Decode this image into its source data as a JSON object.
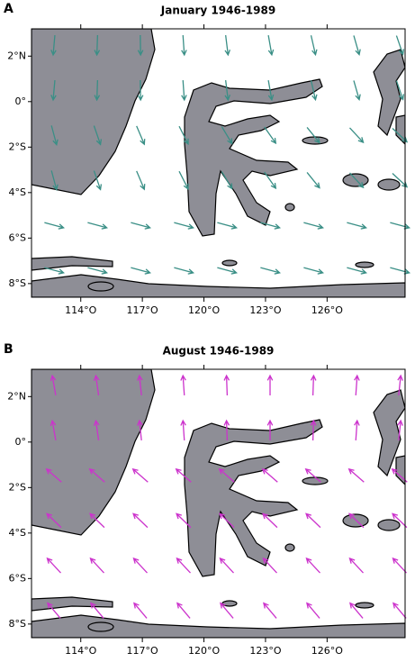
{
  "panels": [
    {
      "label": "A",
      "title": "January 1946-1989",
      "arrow_color": "#3a8f86",
      "xlim": [
        111.6,
        129.8
      ],
      "ylim": [
        -8.6,
        3.2
      ],
      "xticks": [
        {
          "value": 114,
          "label": "114°O"
        },
        {
          "value": 117,
          "label": "117°O"
        },
        {
          "value": 120,
          "label": "120°O"
        },
        {
          "value": 123,
          "label": "123°O"
        },
        {
          "value": 126,
          "label": "126°O"
        }
      ],
      "yticks": [
        {
          "value": 2,
          "label": "2°N"
        },
        {
          "value": 0,
          "label": "0°"
        },
        {
          "value": -2,
          "label": "2°S"
        },
        {
          "value": -4,
          "label": "4°S"
        },
        {
          "value": -6,
          "label": "6°S"
        },
        {
          "value": -8,
          "label": "8°S"
        }
      ]
    },
    {
      "label": "B",
      "title": "August 1946-1989",
      "arrow_color": "#cc33cc",
      "xlim": [
        111.6,
        129.8
      ],
      "ylim": [
        -8.6,
        3.2
      ],
      "xticks": [
        {
          "value": 114,
          "label": "114°O"
        },
        {
          "value": 117,
          "label": "117°O"
        },
        {
          "value": 120,
          "label": "120°O"
        },
        {
          "value": 123,
          "label": "123°O"
        },
        {
          "value": 126,
          "label": "126°O"
        }
      ],
      "yticks": [
        {
          "value": 2,
          "label": "2°N"
        },
        {
          "value": 0,
          "label": "0°"
        },
        {
          "value": -2,
          "label": "2°S"
        },
        {
          "value": -4,
          "label": "4°S"
        },
        {
          "value": -6,
          "label": "6°S"
        },
        {
          "value": -8,
          "label": "8°S"
        }
      ]
    }
  ]
}
